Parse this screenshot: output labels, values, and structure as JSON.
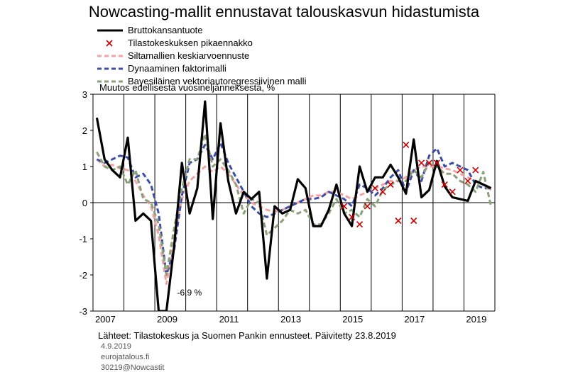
{
  "header": {
    "title": "Nowcasting-mallit ennustavat talouskasvun hidastumista",
    "unit_label": "Muutos edellisestä vuosineljänneksestä,  %"
  },
  "footer": {
    "source": "Lähteet: Tilastokeskus ja Suomen Pankin ennusteet. Päivitetty 23.8.2019",
    "date": "4.9.2019",
    "site": "eurojatalous.fi",
    "id": "30219@Nowcastit"
  },
  "chart_data": {
    "type": "line",
    "x_unit": "quarter",
    "x_start": "2007Q1",
    "ylim": [
      -3,
      3
    ],
    "yticks": [
      -3,
      -2,
      -1,
      0,
      1,
      2,
      3
    ],
    "xticks": [
      "2007",
      "2009",
      "2011",
      "2013",
      "2015",
      "2017",
      "2019"
    ],
    "grid": {
      "vertical": true,
      "horizontal": false
    },
    "legend_position": "top-left",
    "annotation": {
      "text": "-6,9 %",
      "x": "2009Q1"
    },
    "series": [
      {
        "name": "Bruttokansantuote",
        "style": "line",
        "color": "#000000",
        "values": [
          2.35,
          1.2,
          0.9,
          0.7,
          1.8,
          -0.5,
          -0.3,
          -0.5,
          -3.0,
          -3.0,
          -1.2,
          1.1,
          -0.3,
          0.4,
          2.8,
          -0.45,
          2.2,
          0.6,
          -0.3,
          0.3,
          0.1,
          0.3,
          -2.1,
          -0.1,
          -0.3,
          -0.2,
          0.65,
          0.4,
          -0.65,
          -0.65,
          -0.2,
          0.5,
          -0.3,
          -0.65,
          1.0,
          0.3,
          0.7,
          0.7,
          1.05,
          0.7,
          0.25,
          1.75,
          0.15,
          0.35,
          1.15,
          0.45,
          0.15,
          0.1,
          0.05,
          0.6,
          0.5,
          0.4
        ]
      },
      {
        "name": "Tilastokeskuksen pikaennakko",
        "style": "markers",
        "color": "#cc0000",
        "points": [
          {
            "x": "2015Q1",
            "y": -0.1
          },
          {
            "x": "2015Q2",
            "y": -0.4
          },
          {
            "x": "2015Q3",
            "y": -0.6
          },
          {
            "x": "2015Q4",
            "y": -0.1
          },
          {
            "x": "2016Q1",
            "y": 0.4
          },
          {
            "x": "2016Q2",
            "y": 0.3
          },
          {
            "x": "2016Q3",
            "y": 0.5
          },
          {
            "x": "2016Q4",
            "y": -0.5
          },
          {
            "x": "2017Q1",
            "y": 1.6
          },
          {
            "x": "2017Q2",
            "y": -0.5
          },
          {
            "x": "2017Q3",
            "y": 1.1
          },
          {
            "x": "2017Q4",
            "y": 1.1
          },
          {
            "x": "2018Q1",
            "y": 1.1
          },
          {
            "x": "2018Q2",
            "y": 0.5
          },
          {
            "x": "2018Q3",
            "y": 0.3
          },
          {
            "x": "2018Q4",
            "y": 0.9
          },
          {
            "x": "2019Q1",
            "y": 0.6
          },
          {
            "x": "2019Q2",
            "y": 0.9
          }
        ]
      },
      {
        "name": "Siltamallien keskiarvoennuste",
        "style": "dashed",
        "color": "#f4a3a3",
        "values": [
          1.2,
          1.0,
          1.05,
          0.95,
          0.9,
          0.6,
          0.2,
          -0.1,
          -0.9,
          -2.25,
          -1.0,
          0.1,
          0.6,
          0.8,
          1.0,
          0.85,
          1.0,
          0.8,
          0.5,
          0.2,
          0.0,
          -0.1,
          -0.2,
          -0.25,
          -0.2,
          -0.1,
          0.0,
          0.1,
          0.2,
          0.2,
          0.3,
          0.3,
          0.2,
          0.1,
          0.2,
          0.3,
          0.4,
          0.5,
          0.6,
          0.6,
          0.7,
          0.9,
          1.0,
          1.0,
          1.0,
          0.95,
          0.9,
          0.8,
          0.7,
          0.6,
          0.5,
          0.35
        ]
      },
      {
        "name": "Dynaaminen faktorimalli",
        "style": "dashed",
        "color": "#3d4ea8",
        "values": [
          1.2,
          1.1,
          1.2,
          1.3,
          1.25,
          0.7,
          0.8,
          0.5,
          -0.3,
          -2.0,
          -1.3,
          0.2,
          1.1,
          1.2,
          1.6,
          1.2,
          1.65,
          1.1,
          0.7,
          0.3,
          -0.1,
          -0.3,
          -0.4,
          -0.3,
          -0.2,
          -0.1,
          0.0,
          0.1,
          0.1,
          0.15,
          0.3,
          0.2,
          0.1,
          -0.1,
          0.5,
          0.4,
          0.2,
          0.4,
          0.7,
          0.9,
          0.3,
          0.9,
          0.6,
          1.3,
          1.5,
          1.0,
          1.1,
          1.0,
          0.9,
          0.5,
          0.4,
          0.4
        ]
      },
      {
        "name": "Bayesiläinen vektoriautoregressiivinen malli",
        "style": "dashed",
        "color": "#8aa078",
        "values": [
          1.4,
          1.0,
          0.9,
          1.0,
          0.5,
          0.9,
          0.1,
          0.0,
          -0.6,
          -2.0,
          -0.7,
          0.4,
          1.2,
          1.2,
          1.9,
          1.0,
          1.2,
          0.9,
          0.5,
          -0.3,
          0.1,
          0.0,
          -0.9,
          -0.7,
          -0.5,
          -0.2,
          -0.3,
          -0.2,
          -0.6,
          -0.6,
          -0.3,
          0.1,
          -0.3,
          -0.2,
          -0.4,
          0.1,
          -0.1,
          0.35,
          0.5,
          0.6,
          0.6,
          0.9,
          0.7,
          1.1,
          1.0,
          0.8,
          0.8,
          0.6,
          0.5,
          0.3,
          0.85,
          -0.1
        ]
      }
    ]
  }
}
